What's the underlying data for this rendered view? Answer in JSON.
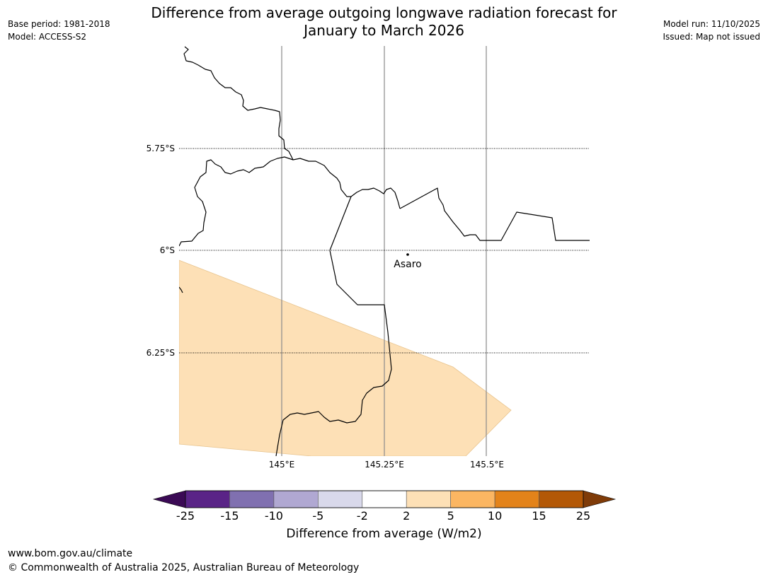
{
  "title": {
    "line1": "Difference from average outgoing longwave radiation forecast for",
    "line2": "January to March 2026"
  },
  "meta_left": {
    "base_period": "Base period: 1981-2018",
    "model": "Model: ACCESS-S2"
  },
  "meta_right": {
    "model_run": "Model run: 11/10/2025",
    "issued": "Issued: Map not issued"
  },
  "map": {
    "latitude_labels": [
      "5.75°S",
      "6°S",
      "6.25°S"
    ],
    "longitude_labels": [
      "145°E",
      "145.25°E",
      "145.5°E"
    ],
    "place": {
      "name": "Asaro"
    },
    "anomaly_region_color": "#fde0b6",
    "anomaly_category": "2 to 5"
  },
  "colorbar": {
    "title": "Difference from average (W/m2)",
    "ticks": [
      "-25",
      "-15",
      "-10",
      "-5",
      "-2",
      "2",
      "5",
      "10",
      "15",
      "25"
    ],
    "colors": [
      "#5a2487",
      "#8070b0",
      "#b0a8d2",
      "#d9d9eb",
      "#ffffff",
      "#fde0b6",
      "#fbb662",
      "#e3831a",
      "#b35806"
    ],
    "extend_low_color": "#3b0a55",
    "extend_high_color": "#7f3b08"
  },
  "footer": {
    "url": "www.bom.gov.au/climate",
    "copyright": "© Commonwealth of Australia 2025, Australian Bureau of Meteorology"
  }
}
